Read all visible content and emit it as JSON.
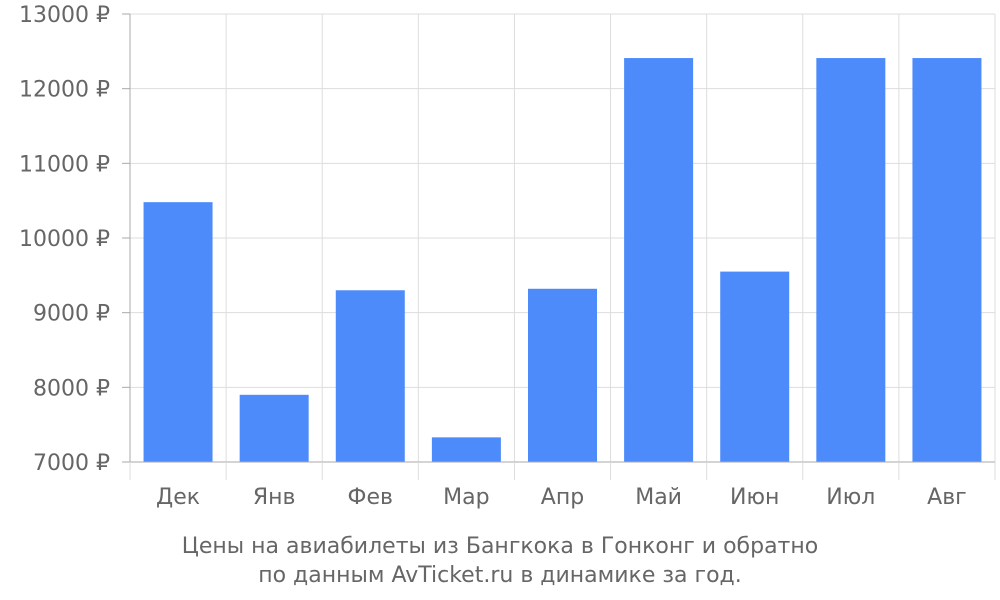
{
  "chart_data": {
    "type": "bar",
    "categories": [
      "Дек",
      "Янв",
      "Фев",
      "Мар",
      "Апр",
      "Май",
      "Июн",
      "Июл",
      "Авг"
    ],
    "series": [
      {
        "values": [
          10480,
          7900,
          9300,
          7330,
          9320,
          12410,
          9550,
          12410,
          12410
        ]
      }
    ],
    "ylim": [
      7000,
      13000
    ],
    "y_ticks": [
      7000,
      8000,
      9000,
      10000,
      11000,
      12000,
      13000
    ],
    "y_tick_labels": [
      "7000 ₽",
      "8000 ₽",
      "9000 ₽",
      "10000 ₽",
      "11000 ₽",
      "12000 ₽",
      "13000 ₽"
    ],
    "grid": true,
    "legend": "none",
    "caption_lines": [
      "Цены на авиабилеты из Бангкока в Гонконг и обратно",
      "по данным AvTicket.ru в динамике за год."
    ]
  },
  "colors": {
    "bar": "#4d8bfa",
    "grid": "#dddddd",
    "axis": "#aaaaaa",
    "text": "#666666"
  }
}
